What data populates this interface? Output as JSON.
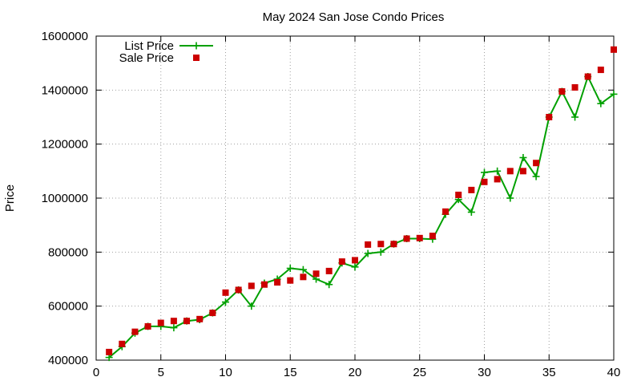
{
  "chart_data": {
    "type": "line",
    "title": "May 2024 San Jose Condo Prices",
    "xlabel": "",
    "ylabel": "Price",
    "xlim": [
      0,
      40
    ],
    "ylim": [
      400000,
      1600000
    ],
    "x_ticks": [
      0,
      5,
      10,
      15,
      20,
      25,
      30,
      35,
      40
    ],
    "y_ticks": [
      400000,
      600000,
      800000,
      1000000,
      1200000,
      1400000,
      1600000
    ],
    "x_tick_labels": [
      "0",
      "5",
      "10",
      "15",
      "20",
      "25",
      "30",
      "35",
      "40"
    ],
    "y_tick_labels": [
      "400000",
      "600000",
      "800000",
      "1000000",
      "1200000",
      "1400000",
      "1600000"
    ],
    "grid": true,
    "legend_position": "top-left",
    "series": [
      {
        "name": "List Price",
        "kind": "line-points",
        "color": "#00a000",
        "x": [
          1,
          2,
          3,
          4,
          5,
          6,
          7,
          8,
          9,
          10,
          11,
          12,
          13,
          14,
          15,
          16,
          17,
          18,
          19,
          20,
          21,
          22,
          23,
          24,
          25,
          26,
          27,
          28,
          29,
          30,
          31,
          32,
          33,
          34,
          35,
          36,
          37,
          38,
          39,
          40
        ],
        "values": [
          410000,
          450000,
          500000,
          525000,
          525000,
          520000,
          545000,
          550000,
          575000,
          615000,
          660000,
          600000,
          685000,
          700000,
          740000,
          735000,
          700000,
          680000,
          760000,
          745000,
          795000,
          800000,
          830000,
          850000,
          850000,
          848000,
          940000,
          995000,
          948000,
          1095000,
          1100000,
          1000000,
          1150000,
          1080000,
          1300000,
          1395000,
          1300000,
          1450000,
          1350000,
          1385000
        ]
      },
      {
        "name": "Sale Price",
        "kind": "points",
        "color": "#cc0000",
        "x": [
          1,
          2,
          3,
          4,
          5,
          6,
          7,
          8,
          9,
          10,
          11,
          12,
          13,
          14,
          15,
          16,
          17,
          18,
          19,
          20,
          21,
          22,
          23,
          24,
          25,
          26,
          27,
          28,
          29,
          30,
          31,
          32,
          33,
          34,
          35,
          36,
          37,
          38,
          39,
          40
        ],
        "values": [
          430000,
          460000,
          505000,
          525000,
          538000,
          545000,
          545000,
          552000,
          575000,
          650000,
          660000,
          675000,
          680000,
          688000,
          695000,
          708000,
          720000,
          730000,
          765000,
          770000,
          828000,
          830000,
          830000,
          850000,
          852000,
          860000,
          950000,
          1012000,
          1030000,
          1060000,
          1070000,
          1100000,
          1100000,
          1130000,
          1300000,
          1395000,
          1410000,
          1450000,
          1475000,
          1550000
        ]
      }
    ]
  }
}
